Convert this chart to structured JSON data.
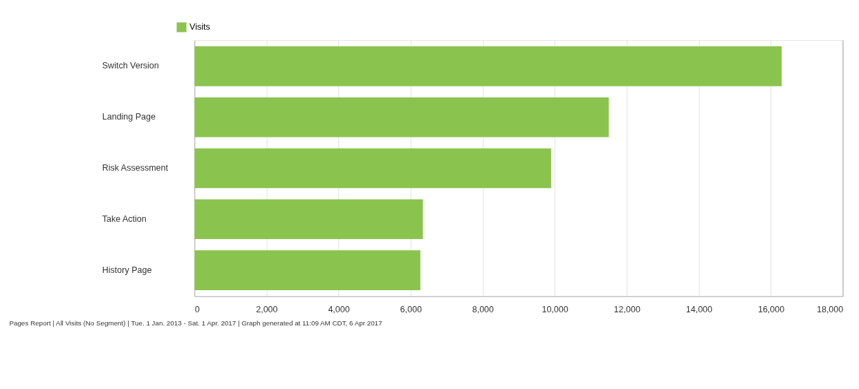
{
  "chart_data": {
    "type": "bar",
    "orientation": "horizontal",
    "categories": [
      "Switch Version",
      "Landing Page",
      "Risk Assessment",
      "Take Action",
      "History Page"
    ],
    "series": [
      {
        "name": "Visits",
        "color": "#8bc34f",
        "values": [
          16300,
          11500,
          9900,
          6340,
          6270
        ]
      }
    ],
    "xlim": [
      0,
      18000
    ],
    "xticks": [
      0,
      {
        "value": 2000,
        "label": "2,000"
      },
      {
        "value": 4000,
        "label": "4,000"
      },
      {
        "value": 6000,
        "label": "6,000"
      },
      {
        "value": 8000,
        "label": "8,000"
      },
      {
        "value": 10000,
        "label": "10,000"
      },
      {
        "value": 12000,
        "label": "12,000"
      },
      {
        "value": 14000,
        "label": "14,000"
      },
      {
        "value": 16000,
        "label": "16,000"
      },
      {
        "value": 18000,
        "label": "18,000"
      }
    ],
    "grid": "x",
    "legend": "top left",
    "annotations": [
      "Pages Report | All Visits (No Segment) | Tue.  1 Jan. 2013 - Sat.  1 Apr. 2017 | Graph generated at 11:09 AM CDT,  6 Apr 2017"
    ]
  }
}
